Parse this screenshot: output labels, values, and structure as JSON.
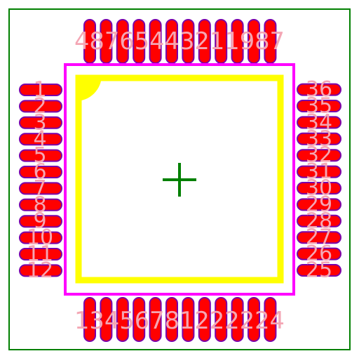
{
  "footprint": {
    "pin_count": 48,
    "left_pins": [
      "1",
      "2",
      "3",
      "4",
      "5",
      "6",
      "7",
      "8",
      "9",
      "10",
      "11",
      "12"
    ],
    "bottom_pins": [
      "13",
      "14",
      "15",
      "16",
      "17",
      "18",
      "19",
      "20",
      "21",
      "22",
      "23",
      "24"
    ],
    "right_pins": [
      "25",
      "26",
      "27",
      "28",
      "29",
      "30",
      "31",
      "32",
      "33",
      "34",
      "35",
      "36"
    ],
    "top_pins": [
      "37",
      "38",
      "39",
      "40",
      "41",
      "42",
      "43",
      "44",
      "45",
      "46",
      "47",
      "48"
    ],
    "left_labels": [
      "1",
      "2",
      "3",
      "4",
      "5",
      "6",
      "7",
      "8",
      "9",
      "10",
      "11",
      "12"
    ],
    "right_labels": [
      "25",
      "26",
      "27",
      "28",
      "29",
      "30",
      "31",
      "32",
      "33",
      "34",
      "35",
      "36"
    ],
    "bottom_label": "13456781222224",
    "top_label": "48765443211987"
  },
  "colors": {
    "background": "#ffffff",
    "courtyard": "#008000",
    "pad_fill": "#ff0000",
    "pad_outline": "#7a00a8",
    "silkscreen": "#ffff00",
    "assembly_outline": "#ff00ff",
    "pin_label": "#f4a6b4",
    "origin_marker": "#008000"
  },
  "origin_marker": "crosshair-icon",
  "pin1_marker": "quarter-circle"
}
